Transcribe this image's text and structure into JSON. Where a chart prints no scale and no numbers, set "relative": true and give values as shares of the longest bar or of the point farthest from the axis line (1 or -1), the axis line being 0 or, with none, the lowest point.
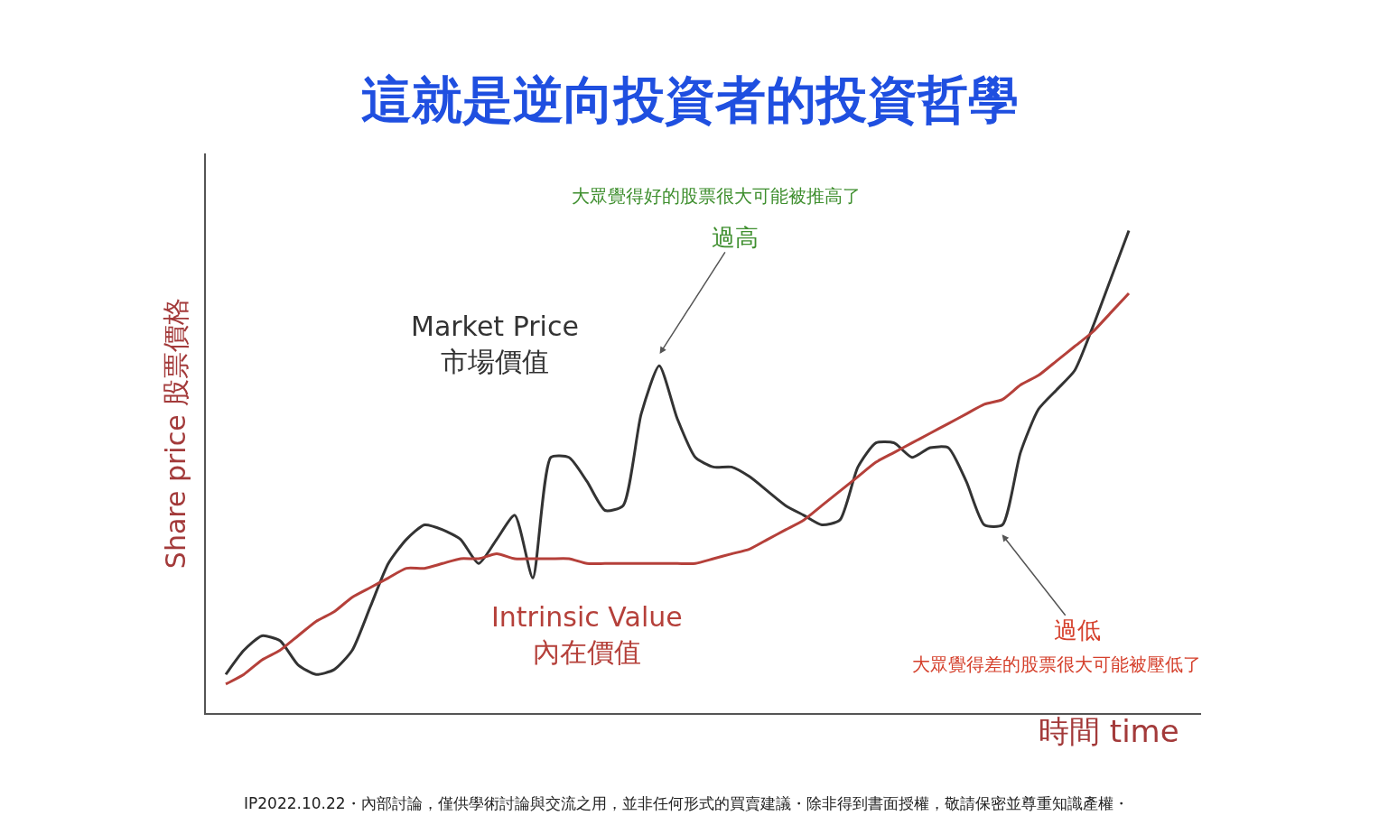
{
  "chart_data": {
    "type": "line",
    "relative": true,
    "legend": false,
    "marker": "none",
    "line_style": "solid",
    "title": "這就是逆向投資者的投資哲學",
    "ylabel": "Share price 股票價格",
    "xlabel": "時間 time",
    "categories": [
      null,
      null,
      null,
      null,
      null,
      null,
      null,
      null,
      null,
      null,
      null,
      null,
      null,
      null,
      null,
      null,
      null,
      null,
      null,
      null,
      null,
      null,
      null,
      null,
      null,
      null,
      null,
      null,
      null,
      null,
      null,
      null,
      null,
      null,
      null,
      null,
      null,
      null,
      null,
      null,
      null,
      null,
      null,
      null,
      null,
      null,
      null,
      null,
      null,
      null,
      null
    ],
    "series": [
      {
        "name": "Market Price\n市場價值",
        "color": "#333333",
        "values": [
          0.08,
          0.13,
          0.16,
          0.15,
          0.1,
          0.08,
          0.09,
          0.13,
          0.22,
          0.31,
          0.36,
          0.39,
          0.38,
          0.36,
          0.31,
          0.36,
          0.41,
          0.28,
          0.53,
          0.53,
          0.48,
          0.42,
          0.43,
          0.62,
          0.72,
          0.61,
          0.53,
          0.51,
          0.51,
          0.49,
          0.46,
          0.43,
          0.41,
          0.39,
          0.4,
          0.51,
          0.56,
          0.56,
          0.53,
          0.55,
          0.55,
          0.48,
          0.39,
          0.39,
          0.54,
          0.63,
          0.67,
          0.71,
          0.8,
          0.9,
          1.0
        ]
      },
      {
        "name": "Intrinsic Value\n內在價值",
        "color": "#b5403a",
        "values": [
          0.06,
          0.08,
          0.11,
          0.13,
          0.16,
          0.19,
          0.21,
          0.24,
          0.26,
          0.28,
          0.3,
          0.3,
          0.31,
          0.32,
          0.32,
          0.33,
          0.32,
          0.32,
          0.32,
          0.32,
          0.31,
          0.31,
          0.31,
          0.31,
          0.31,
          0.31,
          0.31,
          0.32,
          0.33,
          0.34,
          0.36,
          0.38,
          0.4,
          0.43,
          0.46,
          0.49,
          0.52,
          0.54,
          0.56,
          0.58,
          0.6,
          0.62,
          0.64,
          0.65,
          0.68,
          0.7,
          0.73,
          0.76,
          0.79,
          0.83,
          0.87
        ]
      }
    ],
    "annotations": [
      "大眾覺得好的股票很大可能被推高了",
      "過高",
      "過低",
      "大眾覺得差的股票很大可能被壓低了",
      "IP2022.10.22・內部討論，僅供學術討論與交流之用，並非任何形式的買賣建議・除非得到書面授權，敬請保密並尊重知識產權・"
    ]
  }
}
